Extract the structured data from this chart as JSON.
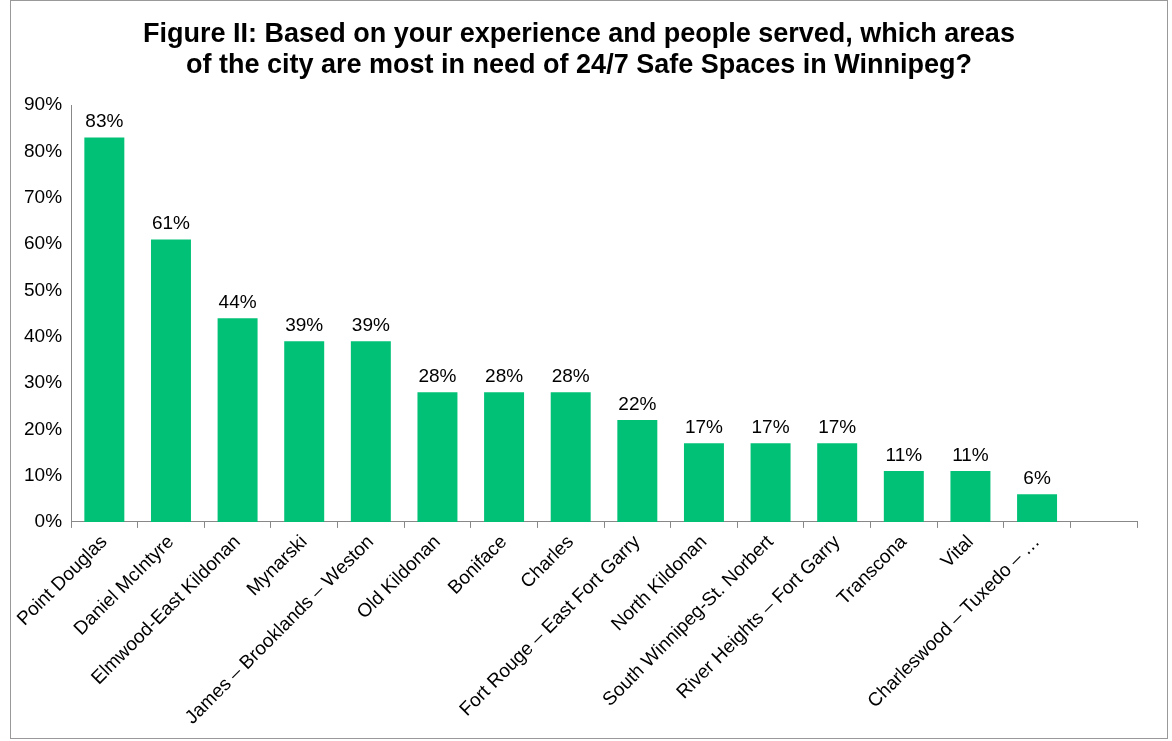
{
  "chart_data": {
    "type": "bar",
    "title": "Figure II: Based on your experience and people served, which areas of the city are most in need of 24/7 Safe Spaces in Winnipeg?",
    "categories": [
      "Point Douglas",
      "Daniel McIntyre",
      "Elmwood-East Kildonan",
      "Mynarski",
      "James – Brooklands – Weston",
      "Old Kildonan",
      "Boniface",
      "Charles",
      "Fort Rouge – East Fort Garry",
      "North Kildonan",
      "South Winnipeg-St. Norbert",
      "River Heights – Fort Garry",
      "Transcona",
      "Vital",
      "Charleswood – Tuxedo – …",
      null
    ],
    "values": [
      83,
      61,
      44,
      39,
      39,
      28,
      28,
      28,
      22,
      17,
      17,
      17,
      11,
      11,
      6,
      null
    ],
    "value_labels": [
      "83%",
      "61%",
      "44%",
      "39%",
      "39%",
      "28%",
      "28%",
      "28%",
      "22%",
      "17%",
      "17%",
      "17%",
      "11%",
      "11%",
      "6%",
      null
    ],
    "color": "#00c176",
    "ylim": [
      0,
      90
    ],
    "yticks": [
      {
        "value": 0,
        "label": "0%"
      },
      {
        "value": 10,
        "label": "10%"
      },
      {
        "value": 20,
        "label": "20%"
      },
      {
        "value": 30,
        "label": "30%"
      },
      {
        "value": 40,
        "label": "40%"
      },
      {
        "value": 50,
        "label": "50%"
      },
      {
        "value": 60,
        "label": "60%"
      },
      {
        "value": 70,
        "label": "70%"
      },
      {
        "value": 80,
        "label": "80%"
      },
      {
        "value": 90,
        "label": "90%"
      }
    ]
  }
}
